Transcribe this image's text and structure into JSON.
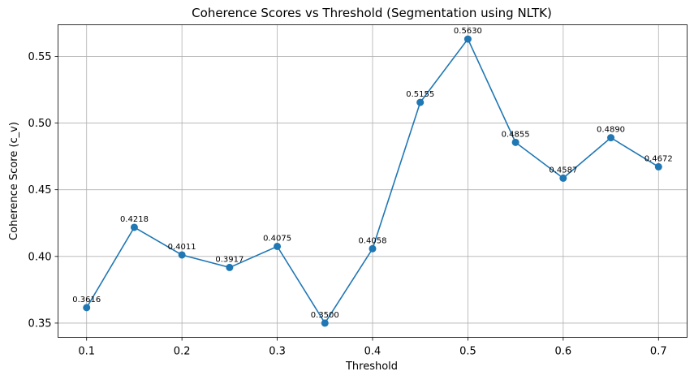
{
  "chart_data": {
    "type": "line",
    "title": "Coherence Scores vs Threshold (Segmentation using NLTK)",
    "xlabel": "Threshold",
    "ylabel": "Coherence Score (c_v)",
    "x": [
      0.1,
      0.15,
      0.2,
      0.25,
      0.3,
      0.35,
      0.4,
      0.45,
      0.5,
      0.55,
      0.6,
      0.65,
      0.7
    ],
    "series": [
      {
        "values": [
          0.3616,
          0.4218,
          0.4011,
          0.3917,
          0.4075,
          0.35,
          0.4058,
          0.5155,
          0.563,
          0.4855,
          0.4587,
          0.489,
          0.4672
        ],
        "color": "#1f77b4"
      }
    ],
    "data_labels": [
      "0.3616",
      "0.4218",
      "0.4011",
      "0.3917",
      "0.4075",
      "0.3500",
      "0.4058",
      "0.5155",
      "0.5630",
      "0.4855",
      "0.4587",
      "0.4890",
      "0.4672"
    ],
    "xticks": [
      0.1,
      0.2,
      0.3,
      0.4,
      0.5,
      0.6,
      0.7
    ],
    "xtick_labels": [
      "0.1",
      "0.2",
      "0.3",
      "0.4",
      "0.5",
      "0.6",
      "0.7"
    ],
    "yticks": [
      0.35,
      0.4,
      0.45,
      0.5,
      0.55
    ],
    "ytick_labels": [
      "0.35",
      "0.40",
      "0.45",
      "0.50",
      "0.55"
    ],
    "xlim": [
      0.07,
      0.73
    ],
    "ylim": [
      0.3393,
      0.5737
    ],
    "grid": true,
    "marker": "circle"
  }
}
